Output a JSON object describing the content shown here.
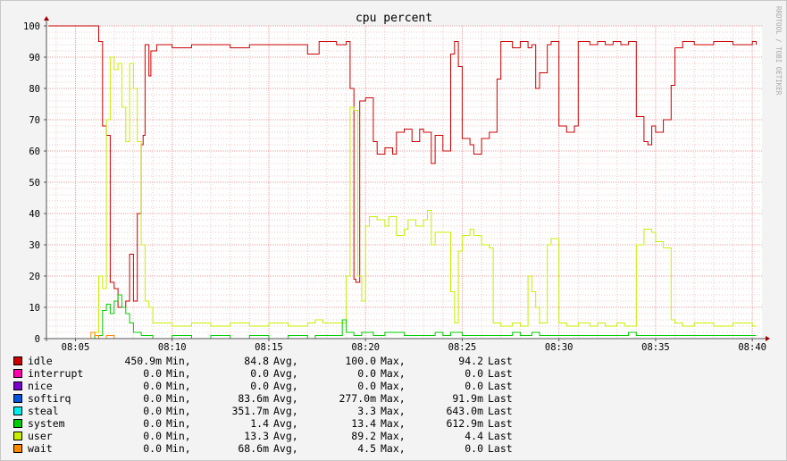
{
  "chart_data": {
    "type": "line",
    "title": "cpu percent",
    "watermark": "RRDTOOL / TOBI OETIKER",
    "ylim": [
      0,
      100
    ],
    "y_ticks": [
      "0",
      "10",
      "20",
      "30",
      "40",
      "50",
      "60",
      "70",
      "80",
      "90",
      "100"
    ],
    "xlim_minutes": [
      3.5,
      40.5
    ],
    "x_ticks": [
      {
        "label": "08:05",
        "minute": 5
      },
      {
        "label": "08:10",
        "minute": 10
      },
      {
        "label": "08:15",
        "minute": 15
      },
      {
        "label": "08:20",
        "minute": 20
      },
      {
        "label": "08:25",
        "minute": 25
      },
      {
        "label": "08:30",
        "minute": 30
      },
      {
        "label": "08:35",
        "minute": 35
      },
      {
        "label": "08:40",
        "minute": 40
      }
    ],
    "grid": true,
    "colors": {
      "background": "#f3f3f3",
      "plot_bg": "#ffffff",
      "major_grid": "#e8a0a0",
      "minor_grid": "#efc8c8",
      "axis": "#555555"
    },
    "series": [
      {
        "name": "idle",
        "color": "#cc0000",
        "points": [
          [
            3.6,
            100
          ],
          [
            5.5,
            100
          ],
          [
            5.8,
            100
          ],
          [
            6.2,
            95
          ],
          [
            6.4,
            68
          ],
          [
            6.6,
            65
          ],
          [
            6.8,
            18
          ],
          [
            7.0,
            16
          ],
          [
            7.2,
            10
          ],
          [
            7.4,
            10
          ],
          [
            7.6,
            12
          ],
          [
            7.8,
            27
          ],
          [
            8.0,
            12
          ],
          [
            8.2,
            40
          ],
          [
            8.4,
            62
          ],
          [
            8.5,
            65
          ],
          [
            8.6,
            94
          ],
          [
            8.8,
            84
          ],
          [
            8.9,
            92
          ],
          [
            9.2,
            94
          ],
          [
            10,
            93
          ],
          [
            11,
            94
          ],
          [
            12,
            94
          ],
          [
            13,
            93
          ],
          [
            14,
            94
          ],
          [
            15,
            94
          ],
          [
            16,
            94
          ],
          [
            17,
            91
          ],
          [
            17.6,
            95
          ],
          [
            18,
            95
          ],
          [
            18.5,
            94
          ],
          [
            19.0,
            95
          ],
          [
            19.2,
            80
          ],
          [
            19.4,
            19
          ],
          [
            19.5,
            18
          ],
          [
            19.7,
            76
          ],
          [
            20,
            77
          ],
          [
            20.4,
            63
          ],
          [
            20.6,
            59
          ],
          [
            21,
            61
          ],
          [
            21.4,
            59
          ],
          [
            21.6,
            66
          ],
          [
            22,
            67
          ],
          [
            22.4,
            63
          ],
          [
            22.8,
            67
          ],
          [
            23,
            66
          ],
          [
            23.4,
            56
          ],
          [
            23.6,
            65
          ],
          [
            24,
            60
          ],
          [
            24.4,
            91
          ],
          [
            24.6,
            95
          ],
          [
            24.8,
            87
          ],
          [
            25,
            64
          ],
          [
            25.4,
            62
          ],
          [
            25.6,
            59
          ],
          [
            26,
            64
          ],
          [
            26.4,
            66
          ],
          [
            26.8,
            83
          ],
          [
            27,
            95
          ],
          [
            27.6,
            93
          ],
          [
            28,
            95
          ],
          [
            28.4,
            93
          ],
          [
            28.6,
            94
          ],
          [
            28.8,
            80
          ],
          [
            29,
            85
          ],
          [
            29.4,
            94
          ],
          [
            29.6,
            95
          ],
          [
            30,
            68
          ],
          [
            30.4,
            66
          ],
          [
            30.8,
            68
          ],
          [
            31,
            95
          ],
          [
            31.6,
            94
          ],
          [
            32,
            95
          ],
          [
            32.4,
            94
          ],
          [
            32.8,
            95
          ],
          [
            33.2,
            94
          ],
          [
            33.6,
            95
          ],
          [
            34,
            71
          ],
          [
            34.4,
            63
          ],
          [
            34.6,
            62
          ],
          [
            34.8,
            68
          ],
          [
            35,
            66
          ],
          [
            35.4,
            70
          ],
          [
            35.8,
            81
          ],
          [
            36,
            93
          ],
          [
            36.4,
            95
          ],
          [
            37,
            94
          ],
          [
            38,
            95
          ],
          [
            39,
            94
          ],
          [
            40,
            95
          ],
          [
            40.2,
            94
          ]
        ]
      },
      {
        "name": "user",
        "color": "#c8ee00",
        "points": [
          [
            3.6,
            0
          ],
          [
            5.8,
            0
          ],
          [
            6.0,
            2
          ],
          [
            6.2,
            20
          ],
          [
            6.4,
            16
          ],
          [
            6.6,
            70
          ],
          [
            6.8,
            90
          ],
          [
            7.0,
            86
          ],
          [
            7.2,
            88
          ],
          [
            7.4,
            74
          ],
          [
            7.6,
            63
          ],
          [
            7.8,
            88
          ],
          [
            8.0,
            80
          ],
          [
            8.2,
            63
          ],
          [
            8.4,
            30
          ],
          [
            8.6,
            12
          ],
          [
            8.8,
            10
          ],
          [
            9.0,
            5
          ],
          [
            9.4,
            5
          ],
          [
            10,
            4
          ],
          [
            11,
            5
          ],
          [
            12,
            4
          ],
          [
            13,
            5
          ],
          [
            14,
            4
          ],
          [
            15,
            5
          ],
          [
            16,
            4
          ],
          [
            17,
            5
          ],
          [
            17.4,
            6
          ],
          [
            17.8,
            5
          ],
          [
            18,
            5
          ],
          [
            18.8,
            5
          ],
          [
            19.0,
            20
          ],
          [
            19.2,
            74
          ],
          [
            19.4,
            73
          ],
          [
            19.6,
            20
          ],
          [
            19.8,
            12
          ],
          [
            20.0,
            36
          ],
          [
            20.2,
            39
          ],
          [
            20.6,
            38
          ],
          [
            21,
            36
          ],
          [
            21.2,
            39
          ],
          [
            21.6,
            33
          ],
          [
            22,
            35
          ],
          [
            22.2,
            38
          ],
          [
            22.6,
            36
          ],
          [
            23,
            38
          ],
          [
            23.2,
            41
          ],
          [
            23.4,
            30
          ],
          [
            23.6,
            34
          ],
          [
            24,
            34
          ],
          [
            24.4,
            15
          ],
          [
            24.6,
            5
          ],
          [
            24.8,
            28
          ],
          [
            25,
            33
          ],
          [
            25.4,
            35
          ],
          [
            25.6,
            33
          ],
          [
            26,
            30
          ],
          [
            26.4,
            29
          ],
          [
            26.6,
            5
          ],
          [
            27,
            4
          ],
          [
            27.6,
            5
          ],
          [
            28,
            4
          ],
          [
            28.4,
            20
          ],
          [
            28.6,
            15
          ],
          [
            28.8,
            10
          ],
          [
            29,
            5
          ],
          [
            29.4,
            30
          ],
          [
            29.6,
            32
          ],
          [
            30,
            5
          ],
          [
            30.4,
            4
          ],
          [
            31,
            5
          ],
          [
            31.6,
            4
          ],
          [
            32,
            5
          ],
          [
            32.4,
            4
          ],
          [
            33,
            5
          ],
          [
            33.4,
            4
          ],
          [
            34,
            30
          ],
          [
            34.4,
            35
          ],
          [
            34.8,
            34
          ],
          [
            35,
            31
          ],
          [
            35.4,
            29
          ],
          [
            35.8,
            6
          ],
          [
            36,
            5
          ],
          [
            36.4,
            4
          ],
          [
            37,
            5
          ],
          [
            38,
            4
          ],
          [
            39,
            5
          ],
          [
            40,
            4
          ],
          [
            40.2,
            4
          ]
        ]
      },
      {
        "name": "system",
        "color": "#00cc00",
        "points": [
          [
            3.6,
            0
          ],
          [
            5.8,
            0
          ],
          [
            6.0,
            1
          ],
          [
            6.4,
            9
          ],
          [
            6.6,
            11
          ],
          [
            6.8,
            8
          ],
          [
            7.0,
            12
          ],
          [
            7.2,
            14
          ],
          [
            7.4,
            10
          ],
          [
            7.6,
            8
          ],
          [
            7.8,
            5
          ],
          [
            8.0,
            2
          ],
          [
            8.4,
            1
          ],
          [
            9,
            0
          ],
          [
            10,
            1
          ],
          [
            11,
            0
          ],
          [
            12,
            1
          ],
          [
            13,
            0
          ],
          [
            14,
            1
          ],
          [
            15,
            0
          ],
          [
            16,
            1
          ],
          [
            17,
            0
          ],
          [
            17.4,
            1
          ],
          [
            18,
            1
          ],
          [
            18.6,
            1
          ],
          [
            18.8,
            6
          ],
          [
            19.0,
            2
          ],
          [
            19.4,
            1
          ],
          [
            19.8,
            2
          ],
          [
            20.4,
            1
          ],
          [
            21,
            2
          ],
          [
            22,
            1
          ],
          [
            23,
            1
          ],
          [
            23.6,
            2
          ],
          [
            24,
            1
          ],
          [
            24.4,
            2
          ],
          [
            25,
            1
          ],
          [
            26,
            1
          ],
          [
            27,
            1
          ],
          [
            27.6,
            2
          ],
          [
            28,
            1
          ],
          [
            28.6,
            2
          ],
          [
            29,
            1
          ],
          [
            30,
            1
          ],
          [
            31,
            1
          ],
          [
            32,
            1
          ],
          [
            33,
            1
          ],
          [
            33.6,
            2
          ],
          [
            34,
            1
          ],
          [
            35,
            1
          ],
          [
            36,
            1
          ],
          [
            37,
            1
          ],
          [
            38,
            1
          ],
          [
            39,
            1
          ],
          [
            40,
            1
          ],
          [
            40.2,
            1
          ]
        ]
      },
      {
        "name": "wait",
        "color": "#ff8800",
        "points": [
          [
            3.6,
            0
          ],
          [
            5.6,
            0
          ],
          [
            5.8,
            2
          ],
          [
            6.0,
            1
          ],
          [
            6.2,
            0
          ],
          [
            6.4,
            0
          ],
          [
            6.6,
            1
          ],
          [
            7.0,
            0
          ],
          [
            8.0,
            0
          ],
          [
            40.2,
            0
          ]
        ]
      }
    ],
    "legend": [
      {
        "name": "idle",
        "color": "#cc0000",
        "min": "450.9m",
        "avg": "84.8",
        "max": "100.0",
        "last": "94.2"
      },
      {
        "name": "interrupt",
        "color": "#ff00aa",
        "min": "0.0",
        "avg": "0.0",
        "max": "0.0",
        "last": "0.0"
      },
      {
        "name": "nice",
        "color": "#7a00cc",
        "min": "0.0",
        "avg": "0.0",
        "max": "0.0",
        "last": "0.0"
      },
      {
        "name": "softirq",
        "color": "#0055dd",
        "min": "0.0",
        "avg": "83.6m",
        "max": "277.0m",
        "last": "91.9m"
      },
      {
        "name": "steal",
        "color": "#00eeee",
        "min": "0.0",
        "avg": "351.7m",
        "max": "3.3",
        "last": "643.0m"
      },
      {
        "name": "system",
        "color": "#00cc00",
        "min": "0.0",
        "avg": "1.4",
        "max": "13.4",
        "last": "612.9m"
      },
      {
        "name": "user",
        "color": "#c8ee00",
        "min": "0.0",
        "avg": "13.3",
        "max": "89.2",
        "last": "4.4"
      },
      {
        "name": "wait",
        "color": "#ff8800",
        "min": "0.0",
        "avg": "68.6m",
        "max": "4.5",
        "last": "0.0"
      }
    ],
    "stat_labels": {
      "min": "Min,",
      "avg": "Avg,",
      "max": "Max,",
      "last": "Last"
    }
  }
}
